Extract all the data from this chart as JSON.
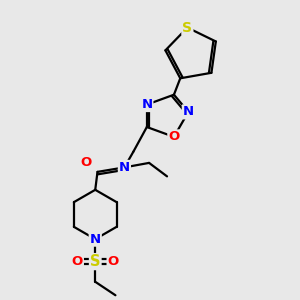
{
  "bg_color": "#e8e8e8",
  "bond_color": "#000000",
  "nitrogen_color": "#0000ff",
  "oxygen_color": "#ff0000",
  "sulfur_color": "#cccc00",
  "figsize": [
    3.0,
    3.0
  ],
  "dpi": 100,
  "lw": 1.6,
  "fs": 9.5,
  "xlim": [
    60,
    255
  ],
  "ylim": [
    20,
    285
  ]
}
